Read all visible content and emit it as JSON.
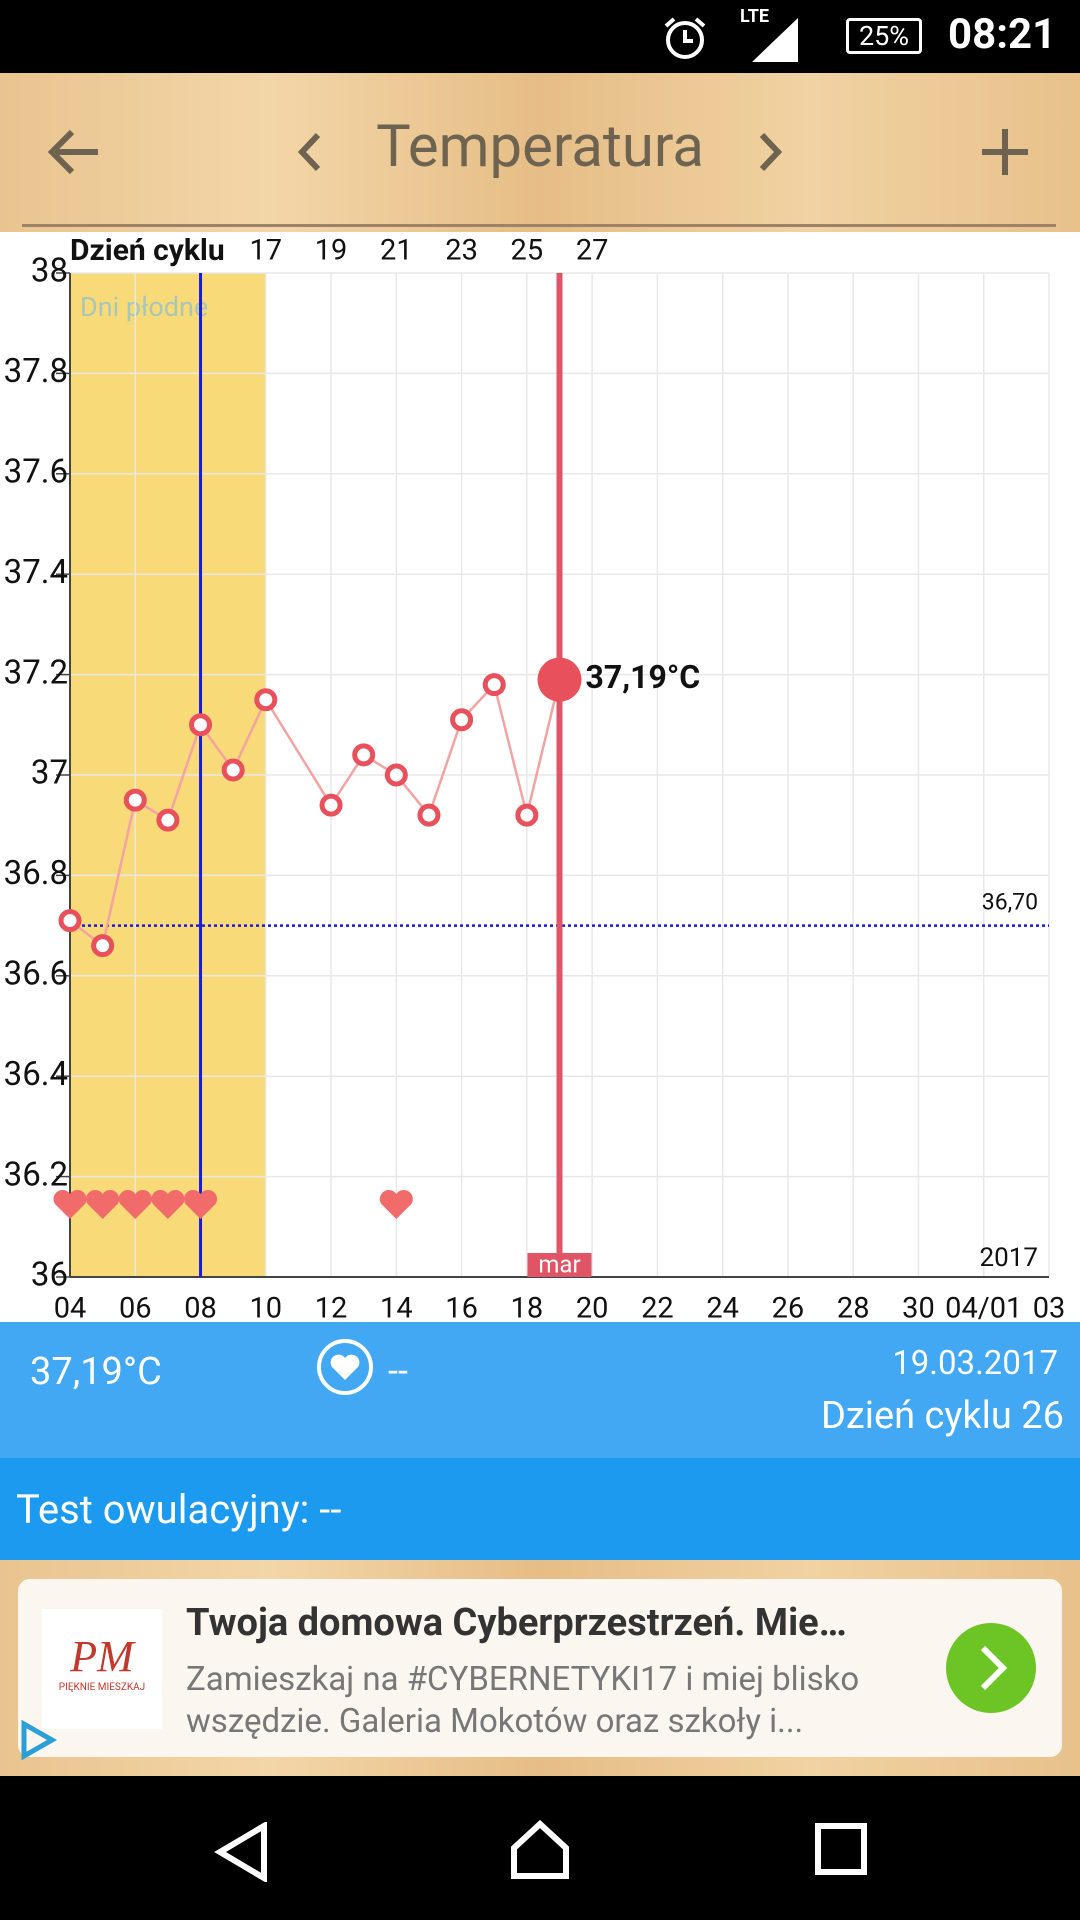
{
  "status_bar": {
    "network": "LTE",
    "battery": "25%",
    "time": "08:21"
  },
  "header": {
    "title": "Temperatura"
  },
  "chart_data": {
    "type": "line",
    "x_label_top": "Dzień cyklu",
    "x": [
      4,
      5,
      6,
      7,
      8,
      9,
      10,
      12,
      13,
      14,
      15,
      16,
      17,
      18,
      19
    ],
    "values": [
      36.71,
      36.66,
      36.95,
      36.91,
      37.1,
      37.01,
      37.15,
      36.94,
      37.04,
      37.0,
      36.92,
      37.11,
      37.18,
      36.92,
      37.19
    ],
    "value_labels": [
      null,
      null,
      null,
      null,
      null,
      null,
      null,
      null,
      null,
      null,
      null,
      null,
      null,
      null,
      "37,19°C"
    ],
    "color": "#f4a3a3",
    "point_color": "#e8505b",
    "xlim": [
      4,
      34
    ],
    "xticks": [
      {
        "value": 4,
        "label": "04"
      },
      {
        "value": 6,
        "label": "06"
      },
      {
        "value": 8,
        "label": "08"
      },
      10,
      12,
      14,
      16,
      18,
      20,
      22,
      24,
      26,
      28,
      30,
      {
        "value": 32,
        "label": "04/01"
      },
      {
        "value": 34,
        "label": "03"
      }
    ],
    "x2ticks": [
      {
        "value": 10,
        "label": "17"
      },
      {
        "value": 12,
        "label": "19"
      },
      {
        "value": 14,
        "label": "21"
      },
      {
        "value": 16,
        "label": "23"
      },
      {
        "value": 18,
        "label": "25"
      },
      {
        "value": 20,
        "label": "27"
      }
    ],
    "ylim": [
      36,
      38
    ],
    "yticks": [
      36,
      36.2,
      36.4,
      36.6,
      36.8,
      37,
      37.2,
      37.4,
      37.6,
      37.8,
      38
    ],
    "grid": true,
    "fertile_window": {
      "label": "Dni płodne",
      "x": [
        4,
        10
      ],
      "color": "#f8da78"
    },
    "ovulation_x": 8,
    "reference_line": {
      "value": 36.7,
      "label": "36,70",
      "color": "#1a1adb"
    },
    "selected": {
      "x": 19,
      "label": "mar",
      "color": "#e05566"
    },
    "hearts_x": [
      4,
      5,
      6,
      7,
      8,
      14
    ],
    "year_label": "2017"
  },
  "info": {
    "temperature": "37,19°C",
    "intercourse": "--",
    "date": "19.03.2017",
    "cycle_day": "Dzień cyklu 26"
  },
  "test": {
    "label": "Test owulacyjny: --"
  },
  "ad": {
    "logo": "PM",
    "logo_caption": "PIĘKNIE MIESZKAJ",
    "title": "Twoja domowa Cyberprzestrzeń. Mie…",
    "body": "Zamieszkaj na #CYBERNETYKI17 i miej blisko wszędzie. Galeria Mokotów oraz szkoły i..."
  }
}
